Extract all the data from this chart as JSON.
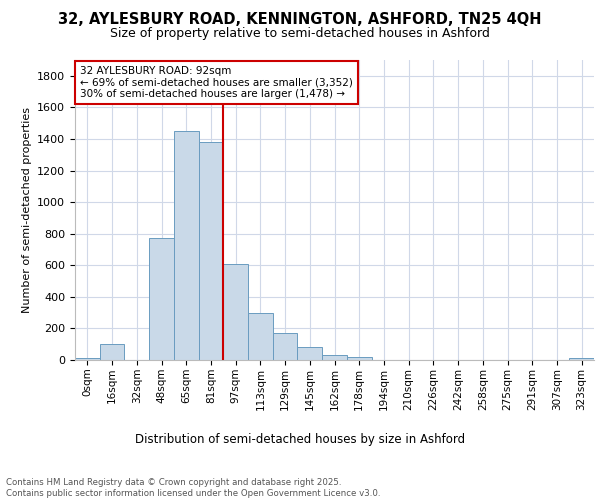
{
  "title_line1": "32, AYLESBURY ROAD, KENNINGTON, ASHFORD, TN25 4QH",
  "title_line2": "Size of property relative to semi-detached houses in Ashford",
  "xlabel": "Distribution of semi-detached houses by size in Ashford",
  "ylabel": "Number of semi-detached properties",
  "bin_labels": [
    "0sqm",
    "16sqm",
    "32sqm",
    "48sqm",
    "65sqm",
    "81sqm",
    "97sqm",
    "113sqm",
    "129sqm",
    "145sqm",
    "162sqm",
    "178sqm",
    "194sqm",
    "210sqm",
    "226sqm",
    "242sqm",
    "258sqm",
    "275sqm",
    "291sqm",
    "307sqm",
    "323sqm"
  ],
  "bar_heights": [
    15,
    100,
    0,
    770,
    1450,
    1380,
    610,
    300,
    170,
    85,
    30,
    20,
    0,
    0,
    0,
    0,
    0,
    0,
    0,
    0,
    15
  ],
  "bar_color": "#c9d9e8",
  "bar_edge_color": "#6a9cc0",
  "vline_x": 5.5,
  "vline_color": "#cc0000",
  "ylim": [
    0,
    1900
  ],
  "yticks": [
    0,
    200,
    400,
    600,
    800,
    1000,
    1200,
    1400,
    1600,
    1800
  ],
  "annotation_title": "32 AYLESBURY ROAD: 92sqm",
  "annotation_line1": "← 69% of semi-detached houses are smaller (3,352)",
  "annotation_line2": "30% of semi-detached houses are larger (1,478) →",
  "annotation_box_color": "#cc0000",
  "footer_line1": "Contains HM Land Registry data © Crown copyright and database right 2025.",
  "footer_line2": "Contains public sector information licensed under the Open Government Licence v3.0.",
  "bg_color": "#ffffff",
  "grid_color": "#d0d8e8"
}
